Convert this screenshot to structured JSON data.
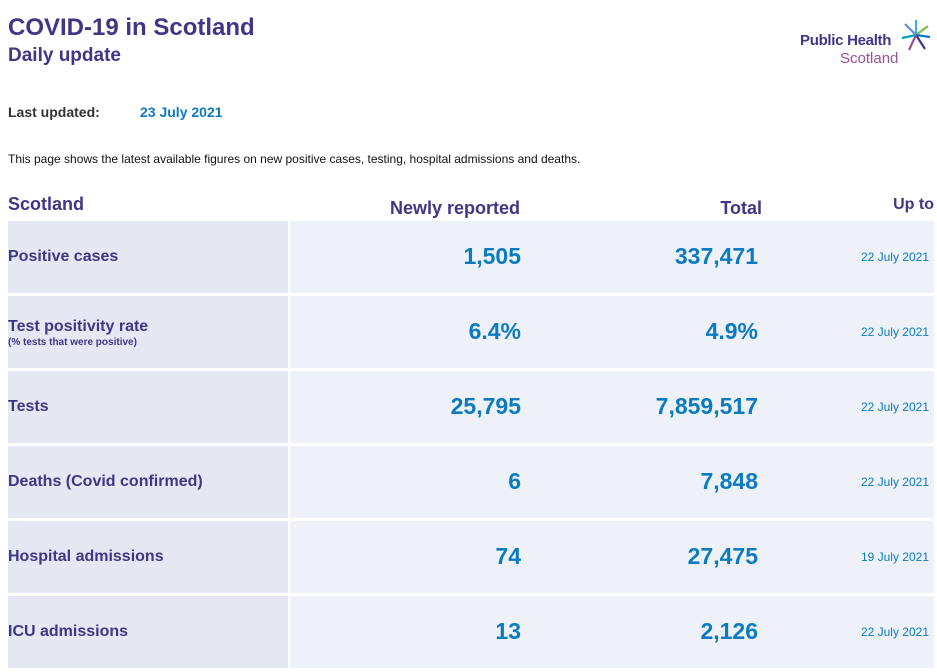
{
  "header": {
    "title": "COVID-19 in Scotland",
    "subtitle": "Daily update",
    "logo_line1": "Public Health",
    "logo_line2": "Scotland"
  },
  "updated": {
    "label": "Last updated:",
    "value": "23 July 2021"
  },
  "intro": "This page shows the latest available figures on new positive cases, testing, hospital admissions and deaths.",
  "table": {
    "headers": {
      "region": "Scotland",
      "new": "Newly reported",
      "total": "Total",
      "upto": "Up to"
    },
    "rows": [
      {
        "label": "Positive cases",
        "sub": "",
        "new": "1,505",
        "total": "337,471",
        "upto": "22 July 2021"
      },
      {
        "label": "Test positivity rate",
        "sub": "(% tests that were positive)",
        "new": "6.4%",
        "total": "4.9%",
        "upto": "22 July 2021"
      },
      {
        "label": "Tests",
        "sub": "",
        "new": "25,795",
        "total": "7,859,517",
        "upto": "22 July 2021"
      },
      {
        "label": "Deaths (Covid confirmed)",
        "sub": "",
        "new": "6",
        "total": "7,848",
        "upto": "22 July 2021"
      },
      {
        "label": "Hospital admissions",
        "sub": "",
        "new": "74",
        "total": "27,475",
        "upto": "19 July 2021"
      },
      {
        "label": "ICU admissions",
        "sub": "",
        "new": "13",
        "total": "2,126",
        "upto": "22 July 2021"
      }
    ]
  },
  "colors": {
    "heading": "#3f3685",
    "value": "#0b7bc1",
    "label_cell": "#e5e8f3",
    "value_cell": "#eef1f8",
    "logo_accent": "#9b4f96"
  }
}
